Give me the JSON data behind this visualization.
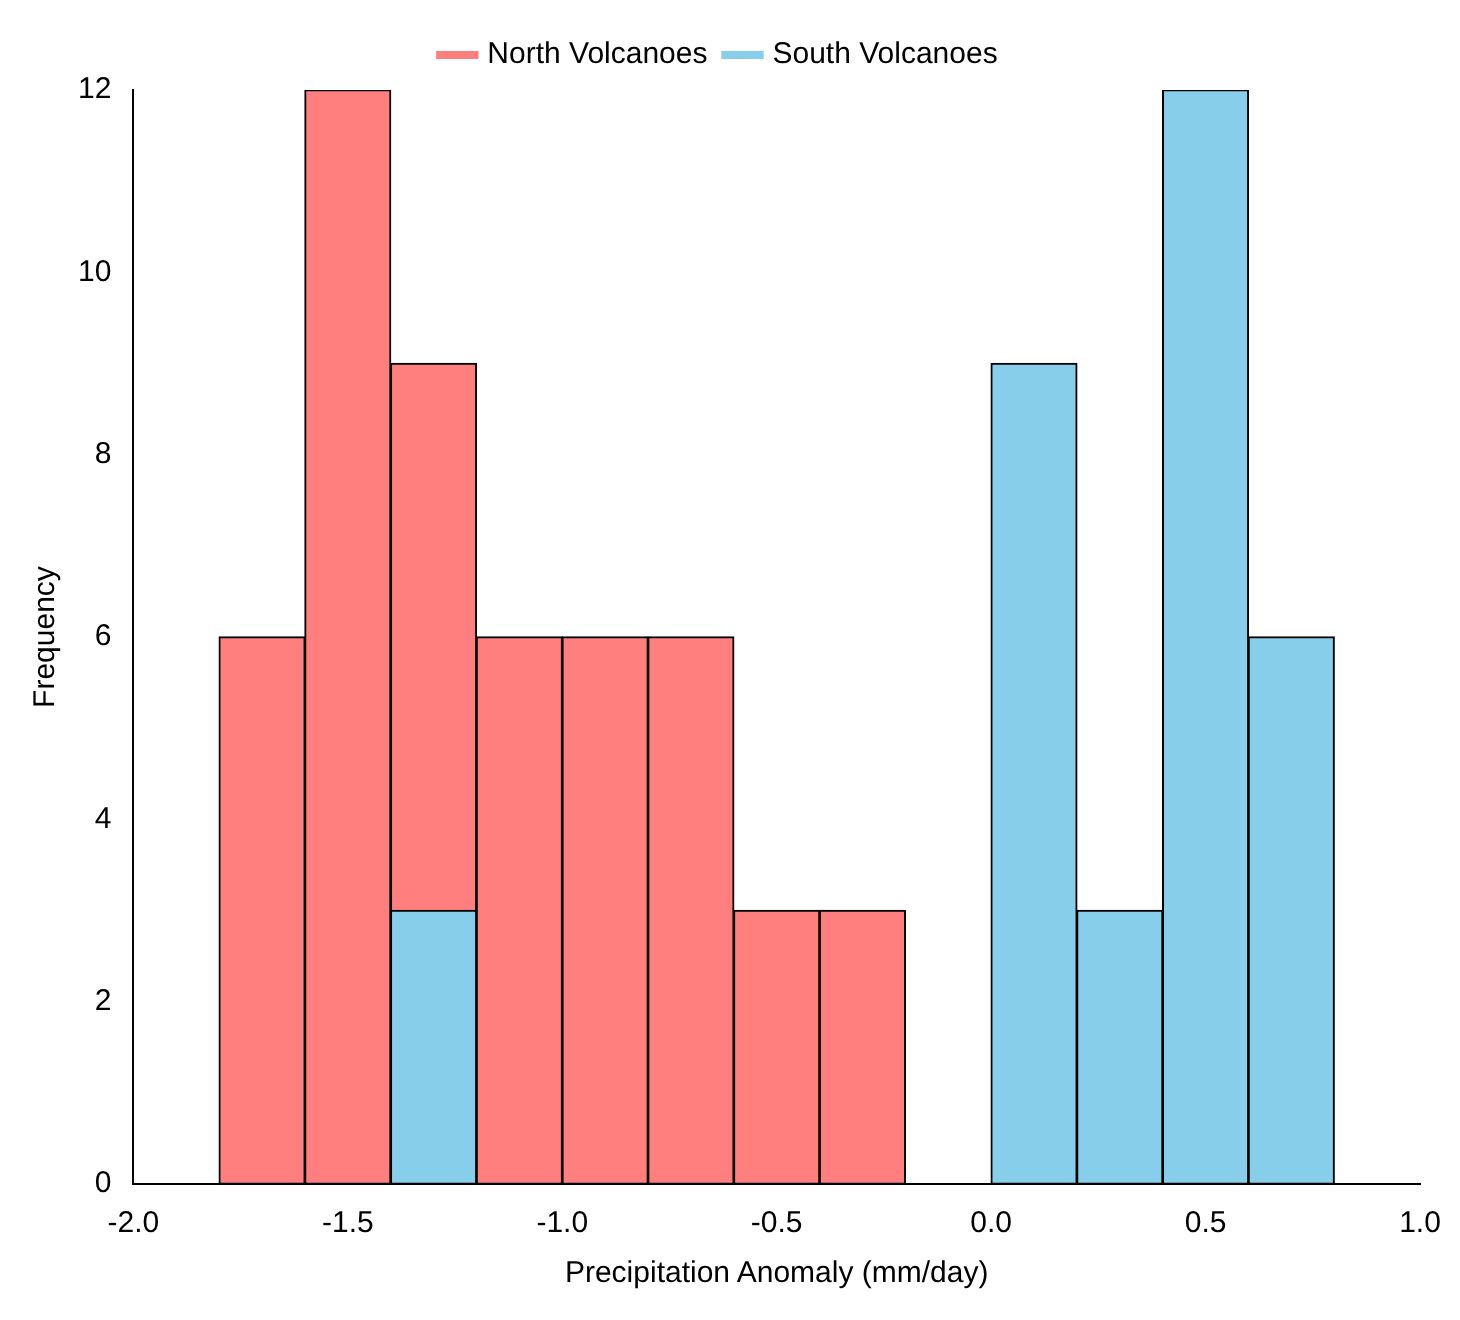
{
  "chart_data": {
    "type": "histogram",
    "xlabel": "Precipitation Anomaly (mm/day)",
    "ylabel": "Frequency",
    "bins": [
      -1.8,
      -1.6,
      -1.4,
      -1.2,
      -1.0,
      -0.8,
      -0.6,
      -0.4,
      -0.2,
      0.0,
      0.2,
      0.4,
      0.6,
      0.8
    ],
    "series": [
      {
        "name": "North Volcanoes",
        "color": "#ff7f7f",
        "values": [
          6,
          12,
          9,
          6,
          6,
          6,
          3,
          3,
          null,
          null,
          null,
          null,
          null
        ]
      },
      {
        "name": "South Volcanoes",
        "color": "#87ceeb",
        "values": [
          null,
          null,
          3,
          0,
          0,
          0,
          0,
          0,
          0,
          9,
          3,
          12,
          6
        ]
      }
    ],
    "xlim": [
      -2,
      1
    ],
    "xticks": [
      {
        "value": -2,
        "label": "-2.0"
      },
      {
        "value": -1.5,
        "label": "-1.5"
      },
      {
        "value": -1,
        "label": "-1.0"
      },
      {
        "value": -0.5,
        "label": "-0.5"
      },
      {
        "value": 0,
        "label": "0.0"
      },
      {
        "value": 0.5,
        "label": "0.5"
      },
      {
        "value": 1,
        "label": "1.0"
      }
    ],
    "ylim": [
      0,
      12
    ],
    "yticks": [
      0,
      2,
      4,
      6,
      8,
      10,
      12
    ],
    "grid": false,
    "legend": "top"
  }
}
